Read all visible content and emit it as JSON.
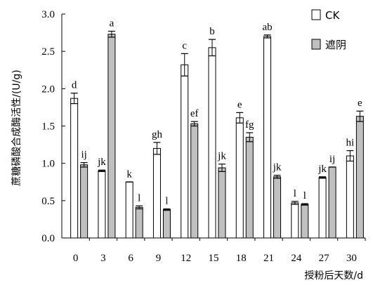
{
  "chart_data": {
    "type": "bar",
    "title": "",
    "xlabel": "授粉后天数/d",
    "ylabel": "蔗糖磷酸合成酶活性/(U/g)",
    "ylim": [
      0,
      3.0
    ],
    "yticks": [
      "0.0",
      "0.5",
      "1.0",
      "1.5",
      "2.0",
      "2.5",
      "3.0"
    ],
    "categories": [
      "0",
      "3",
      "6",
      "9",
      "12",
      "15",
      "18",
      "21",
      "24",
      "27",
      "30"
    ],
    "legend_position": "top-right",
    "series": [
      {
        "name": "CK",
        "color": "#ffffff",
        "values": [
          1.87,
          0.9,
          0.75,
          1.2,
          2.32,
          2.55,
          1.61,
          2.7,
          0.47,
          0.81,
          1.1
        ],
        "errors": [
          0.07,
          0.01,
          0.0,
          0.08,
          0.15,
          0.11,
          0.07,
          0.02,
          0.02,
          0.01,
          0.07
        ],
        "labels": [
          "d",
          "jk",
          "k",
          "gh",
          "c",
          "b",
          "e",
          "ab",
          "l",
          "jk",
          "hi"
        ]
      },
      {
        "name": "遮阴",
        "color": "#c0c0c0",
        "values": [
          0.98,
          2.73,
          0.41,
          0.38,
          1.53,
          0.94,
          1.35,
          0.82,
          0.45,
          0.95,
          1.63
        ],
        "errors": [
          0.03,
          0.04,
          0.02,
          0.01,
          0.03,
          0.05,
          0.06,
          0.02,
          0.01,
          0.0,
          0.07
        ],
        "labels": [
          "ij",
          "a",
          "l",
          "l",
          "ef",
          "jk",
          "fg",
          "jk",
          "l",
          "ij",
          "e"
        ]
      }
    ]
  }
}
